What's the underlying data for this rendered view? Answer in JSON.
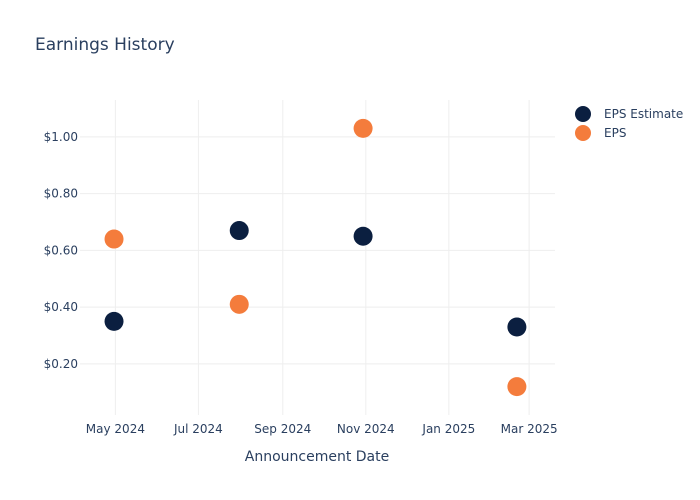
{
  "chart_data": {
    "type": "scatter",
    "title": "Earnings History",
    "xlabel": "Announcement Date",
    "ylabel": "",
    "x_ticks": [
      {
        "date": "2024-05-01",
        "label": "May 2024"
      },
      {
        "date": "2024-07-01",
        "label": "Jul 2024"
      },
      {
        "date": "2024-09-01",
        "label": "Sep 2024"
      },
      {
        "date": "2024-11-01",
        "label": "Nov 2024"
      },
      {
        "date": "2025-01-01",
        "label": "Jan 2025"
      },
      {
        "date": "2025-03-01",
        "label": "Mar 2025"
      }
    ],
    "y_ticks": [
      {
        "value": 0.2,
        "label": "$0.20"
      },
      {
        "value": 0.4,
        "label": "$0.40"
      },
      {
        "value": 0.6,
        "label": "$0.60"
      },
      {
        "value": 0.8,
        "label": "$0.80"
      },
      {
        "value": 1.0,
        "label": "$1.00"
      }
    ],
    "xlim": [
      "2024-04-05",
      "2025-03-20"
    ],
    "ylim": [
      0.02,
      1.13
    ],
    "grid": true,
    "legend_position": "top-right",
    "series": [
      {
        "name": "EPS Estimate",
        "color": "#0b1f40",
        "points": [
          {
            "x": "2024-04-30",
            "y": 0.35
          },
          {
            "x": "2024-07-31",
            "y": 0.67
          },
          {
            "x": "2024-10-30",
            "y": 0.65
          },
          {
            "x": "2025-02-20",
            "y": 0.33
          }
        ]
      },
      {
        "name": "EPS",
        "color": "#f47c3c",
        "points": [
          {
            "x": "2024-04-30",
            "y": 0.64
          },
          {
            "x": "2024-07-31",
            "y": 0.41
          },
          {
            "x": "2024-10-30",
            "y": 1.03
          },
          {
            "x": "2025-02-20",
            "y": 0.12
          }
        ]
      }
    ]
  }
}
